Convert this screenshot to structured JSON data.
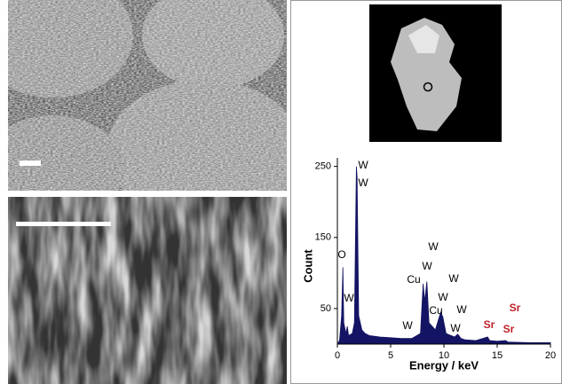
{
  "chart_data": {
    "type": "area",
    "x_label": "Energy / keV",
    "y_label": "Count",
    "color": "#141464",
    "x": [
      0,
      0.2,
      0.4,
      0.52,
      0.6,
      0.8,
      0.93,
      1.05,
      1.4,
      1.6,
      1.78,
      1.85,
      2.0,
      2.3,
      2.6,
      3,
      4,
      5,
      6,
      7,
      7.8,
      8.05,
      8.2,
      8.4,
      8.6,
      8.9,
      9.2,
      9.7,
      9.9,
      10.2,
      11,
      11.3,
      11.6,
      12,
      13,
      14.1,
      14.3,
      15,
      15.8,
      16,
      18,
      20
    ],
    "values": [
      0,
      5,
      40,
      108,
      30,
      15,
      25,
      12,
      15,
      30,
      250,
      235,
      40,
      20,
      15,
      12,
      10,
      9,
      8,
      8,
      15,
      85,
      60,
      88,
      30,
      25,
      20,
      45,
      38,
      15,
      10,
      14,
      8,
      6,
      5,
      10,
      5,
      4,
      5,
      3,
      2,
      2
    ],
    "xlim": [
      0,
      20
    ],
    "xticks": [
      0,
      5,
      10,
      15,
      20
    ],
    "ylim": [
      0,
      262
    ],
    "yticks": [
      50,
      150,
      250
    ],
    "annotations": [
      {
        "text": "W",
        "color": "#000000"
      },
      {
        "text": "W",
        "color": "#000000"
      },
      {
        "text": "O",
        "color": "#000000"
      },
      {
        "text": "W",
        "color": "#000000"
      },
      {
        "text": "W",
        "color": "#000000"
      },
      {
        "text": "W",
        "color": "#000000"
      },
      {
        "text": "Cu",
        "color": "#000000"
      },
      {
        "text": "W",
        "color": "#000000"
      },
      {
        "text": "W",
        "color": "#000000"
      },
      {
        "text": "Cu",
        "color": "#000000"
      },
      {
        "text": "W",
        "color": "#000000"
      },
      {
        "text": "W",
        "color": "#000000"
      },
      {
        "text": "W",
        "color": "#000000"
      },
      {
        "text": "Sr",
        "color": "#c0202a"
      },
      {
        "text": "Sr",
        "color": "#c0202a"
      },
      {
        "text": "Sr",
        "color": "#c0202a"
      }
    ]
  }
}
